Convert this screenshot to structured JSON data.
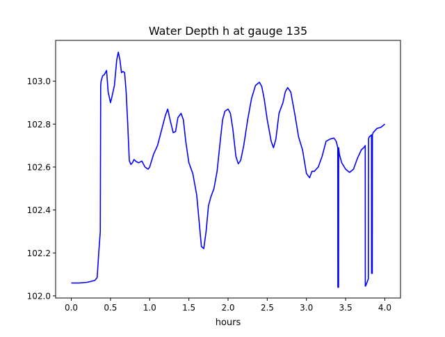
{
  "chart_data": {
    "type": "line",
    "title": "Water Depth h at gauge 135",
    "xlabel": "hours",
    "ylabel": "",
    "xlim": [
      -0.2,
      4.2
    ],
    "ylim": [
      101.99,
      103.19
    ],
    "xticks": [
      0.0,
      0.5,
      1.0,
      1.5,
      2.0,
      2.5,
      3.0,
      3.5,
      4.0
    ],
    "xtick_labels": [
      "0.0",
      "0.5",
      "1.0",
      "1.5",
      "2.0",
      "2.5",
      "3.0",
      "3.5",
      "4.0"
    ],
    "yticks": [
      102.0,
      102.2,
      102.4,
      102.6,
      102.8,
      103.0
    ],
    "ytick_labels": [
      "102.0",
      "102.2",
      "102.4",
      "102.6",
      "102.8",
      "103.0"
    ],
    "grid": false,
    "series": [
      {
        "color": "#0000ff",
        "x": [
          0.0,
          0.1,
          0.2,
          0.3,
          0.33,
          0.35,
          0.37,
          0.375,
          0.38,
          0.4,
          0.42,
          0.45,
          0.47,
          0.5,
          0.52,
          0.55,
          0.58,
          0.6,
          0.62,
          0.64,
          0.66,
          0.68,
          0.7,
          0.72,
          0.74,
          0.76,
          0.78,
          0.8,
          0.83,
          0.86,
          0.9,
          0.94,
          0.98,
          1.0,
          1.05,
          1.1,
          1.15,
          1.2,
          1.23,
          1.26,
          1.3,
          1.33,
          1.36,
          1.4,
          1.43,
          1.46,
          1.5,
          1.55,
          1.6,
          1.63,
          1.66,
          1.69,
          1.72,
          1.75,
          1.78,
          1.82,
          1.86,
          1.9,
          1.93,
          1.96,
          2.0,
          2.03,
          2.06,
          2.1,
          2.13,
          2.16,
          2.2,
          2.25,
          2.3,
          2.35,
          2.4,
          2.43,
          2.46,
          2.5,
          2.55,
          2.58,
          2.61,
          2.65,
          2.7,
          2.73,
          2.76,
          2.8,
          2.85,
          2.9,
          2.95,
          3.0,
          3.04,
          3.07,
          3.1,
          3.15,
          3.2,
          3.25,
          3.3,
          3.35,
          3.38,
          3.4,
          3.401,
          3.41,
          3.411,
          3.42,
          3.45,
          3.5,
          3.55,
          3.6,
          3.65,
          3.7,
          3.73,
          3.75,
          3.751,
          3.76,
          3.79,
          3.792,
          3.8,
          3.83,
          3.831,
          3.84,
          3.842,
          3.85,
          3.9,
          3.95,
          4.0
        ],
        "y": [
          102.06,
          102.06,
          102.063,
          102.072,
          102.085,
          102.2,
          102.3,
          102.98,
          103.0,
          103.025,
          103.03,
          103.05,
          102.95,
          102.9,
          102.93,
          102.98,
          103.1,
          103.135,
          103.1,
          103.04,
          103.045,
          103.04,
          102.95,
          102.8,
          102.63,
          102.612,
          102.62,
          102.635,
          102.625,
          102.62,
          102.628,
          102.6,
          102.59,
          102.6,
          102.66,
          102.7,
          102.77,
          102.84,
          102.87,
          102.82,
          102.76,
          102.765,
          102.83,
          102.85,
          102.82,
          102.72,
          102.62,
          102.57,
          102.47,
          102.35,
          102.23,
          102.22,
          102.3,
          102.42,
          102.46,
          102.5,
          102.58,
          102.72,
          102.82,
          102.86,
          102.87,
          102.85,
          102.78,
          102.65,
          102.615,
          102.63,
          102.7,
          102.82,
          102.92,
          102.98,
          102.995,
          102.975,
          102.92,
          102.82,
          102.72,
          102.69,
          102.73,
          102.85,
          102.9,
          102.95,
          102.97,
          102.95,
          102.85,
          102.74,
          102.68,
          102.57,
          102.55,
          102.58,
          102.58,
          102.6,
          102.65,
          102.72,
          102.73,
          102.735,
          102.72,
          102.69,
          102.04,
          102.04,
          102.69,
          102.66,
          102.62,
          102.59,
          102.575,
          102.59,
          102.64,
          102.68,
          102.69,
          102.7,
          102.045,
          102.05,
          102.08,
          102.73,
          102.74,
          102.75,
          102.105,
          102.105,
          102.75,
          102.76,
          102.78,
          102.785,
          102.8
        ]
      }
    ]
  }
}
